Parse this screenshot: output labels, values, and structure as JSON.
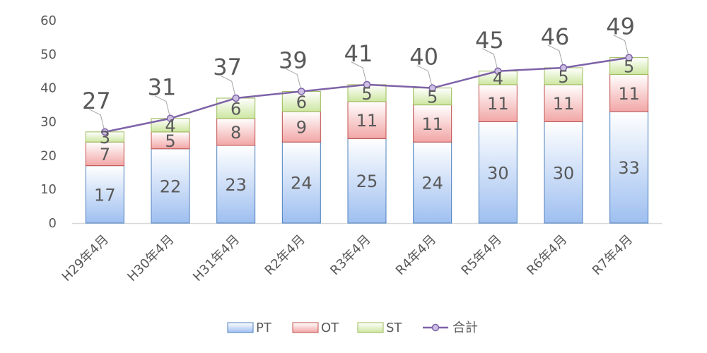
{
  "chart_data": {
    "type": "bar",
    "stacked": true,
    "title": "",
    "xlabel": "",
    "ylabel": "",
    "ylim": [
      0,
      60
    ],
    "yticks": [
      0,
      10,
      20,
      30,
      40,
      50,
      60
    ],
    "grid": false,
    "legend_position": "bottom",
    "categories": [
      "H29年4月",
      "H30年4月",
      "H31年4月",
      "R2年4月",
      "R3年4月",
      "R4年4月",
      "R5年4月",
      "R6年4月",
      "R7年4月"
    ],
    "series": [
      {
        "name": "PT",
        "values": [
          17,
          22,
          23,
          24,
          25,
          24,
          30,
          30,
          33
        ],
        "color": "#8EB4E3"
      },
      {
        "name": "OT",
        "values": [
          7,
          5,
          8,
          9,
          11,
          11,
          11,
          11,
          11
        ],
        "color": "#E6898A"
      },
      {
        "name": "ST",
        "values": [
          3,
          4,
          6,
          6,
          5,
          5,
          4,
          5,
          5
        ],
        "color": "#C3DE8E"
      }
    ],
    "line_series": {
      "name": "合計",
      "values": [
        27,
        31,
        37,
        39,
        41,
        40,
        45,
        46,
        49
      ],
      "color": "#7E62A8"
    }
  }
}
